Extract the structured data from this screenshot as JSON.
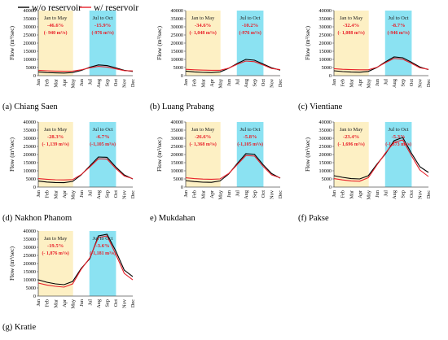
{
  "legend": [
    {
      "name": "w/o reservoir",
      "color": "#000000"
    },
    {
      "name": "w/ reservoir",
      "color": "#e8202a"
    }
  ],
  "colors": {
    "dry_band": "#fdf0c4",
    "wet_band": "#8be2f2",
    "change_text": "#e8202a",
    "dark_text": "#222222"
  },
  "chart_data": [
    {
      "type": "line",
      "caption": "(a) Chiang Saen",
      "ylabel": "Flow (m³/sec)",
      "ylim": [
        0,
        40000
      ],
      "yticks": [
        "0",
        "5000",
        "10000",
        "15000",
        "20000",
        "25000",
        "30000",
        "35000",
        "40000"
      ],
      "categories": [
        "Jan",
        "Feb",
        "Mar",
        "Apr",
        "May",
        "Jun",
        "Jul",
        "Aug",
        "Sep",
        "Oct",
        "Nov",
        "Dec"
      ],
      "series": [
        {
          "name": "w/o reservoir",
          "values": [
            2300,
            1900,
            1700,
            1600,
            1900,
            3200,
            5200,
            6600,
            6200,
            4800,
            3300,
            2600
          ]
        },
        {
          "name": "w/ reservoir",
          "values": [
            3300,
            3000,
            2800,
            2700,
            2800,
            3600,
            4800,
            5700,
            5300,
            4200,
            3100,
            2900
          ]
        }
      ],
      "annotations": [
        {
          "period": "Jan to May",
          "pct": "-46.6%",
          "abs": "(- 940 m³/s)"
        },
        {
          "period": "Jul to Oct",
          "pct": "-15.9%",
          "abs": "(-976 m³/s)"
        }
      ]
    },
    {
      "type": "line",
      "caption": "(b) Luang Prabang",
      "ylabel": "Flow (m³/sec)",
      "ylim": [
        0,
        40000
      ],
      "yticks": [
        "0",
        "5000",
        "10000",
        "15000",
        "20000",
        "25000",
        "30000",
        "35000",
        "40000"
      ],
      "categories": [
        "Jan",
        "Feb",
        "Mar",
        "Apr",
        "May",
        "Jun",
        "Jul",
        "Aug",
        "Sep",
        "Oct",
        "Nov",
        "Dec"
      ],
      "series": [
        {
          "name": "w/o reservoir",
          "values": [
            2800,
            2300,
            2000,
            1900,
            2300,
            4500,
            7500,
            10000,
            9500,
            7200,
            4800,
            3400
          ]
        },
        {
          "name": "w/ reservoir",
          "values": [
            3900,
            3600,
            3400,
            3300,
            3300,
            4600,
            7000,
            9000,
            8600,
            6600,
            4400,
            3700
          ]
        }
      ],
      "annotations": [
        {
          "period": "Jan to May",
          "pct": "-34.6%",
          "abs": "(- 1,048 m³/s)"
        },
        {
          "period": "Jul to Oct",
          "pct": "-10.2%",
          "abs": "(-976 m³/s)"
        }
      ]
    },
    {
      "type": "line",
      "caption": "(c) Vientiane",
      "ylabel": "Flow (m³/sec)",
      "ylim": [
        0,
        40000
      ],
      "yticks": [
        "0",
        "5000",
        "10000",
        "15000",
        "20000",
        "25000",
        "30000",
        "35000",
        "40000"
      ],
      "categories": [
        "Jan",
        "Feb",
        "Mar",
        "Apr",
        "May",
        "Jun",
        "Jul",
        "Aug",
        "Sep",
        "Oct",
        "Nov",
        "Dec"
      ],
      "series": [
        {
          "name": "w/o reservoir",
          "values": [
            3000,
            2500,
            2200,
            2100,
            2600,
            5000,
            8500,
            11500,
            11000,
            8300,
            5300,
            3700
          ]
        },
        {
          "name": "w/ reservoir",
          "values": [
            4300,
            3900,
            3700,
            3600,
            3600,
            5100,
            8000,
            10600,
            10100,
            7600,
            4800,
            3900
          ]
        }
      ],
      "annotations": [
        {
          "period": "Jan to May",
          "pct": "-32.4%",
          "abs": "(- 1,088 m³/s)"
        },
        {
          "period": "Jul to Oct",
          "pct": "-8.7%",
          "abs": "(-946 m³/s)"
        }
      ]
    },
    {
      "type": "line",
      "caption": "(d) Nakhon Phanom",
      "ylabel": "Flow (m³/sec)",
      "ylim": [
        0,
        40000
      ],
      "yticks": [
        "0",
        "5000",
        "10000",
        "15000",
        "20000",
        "25000",
        "30000",
        "35000",
        "40000"
      ],
      "categories": [
        "Jan",
        "Feb",
        "Mar",
        "Apr",
        "May",
        "Jun",
        "Jul",
        "Aug",
        "Sep",
        "Oct",
        "Nov",
        "Dec"
      ],
      "series": [
        {
          "name": "w/o reservoir",
          "values": [
            3700,
            3100,
            2800,
            2700,
            3500,
            7500,
            13000,
            18500,
            18300,
            12500,
            7500,
            5000
          ]
        },
        {
          "name": "w/ reservoir",
          "values": [
            5200,
            4800,
            4500,
            4400,
            4600,
            7700,
            12400,
            17400,
            17200,
            11600,
            6800,
            5200
          ]
        }
      ],
      "annotations": [
        {
          "period": "Jan to May",
          "pct": "-28.3%",
          "abs": "(- 1,139 m³/s)"
        },
        {
          "period": "Jul to Oct",
          "pct": "-6.7%",
          "abs": "(-1,105 m³/s)"
        }
      ]
    },
    {
      "type": "line",
      "caption": "e) Mukdahan",
      "ylabel": "Flow (m³/sec)",
      "ylim": [
        0,
        40000
      ],
      "yticks": [
        "0",
        "5000",
        "10000",
        "15000",
        "20000",
        "25000",
        "30000",
        "35000",
        "40000"
      ],
      "categories": [
        "Jan",
        "Feb",
        "Mar",
        "Apr",
        "May",
        "Jun",
        "Jul",
        "Aug",
        "Sep",
        "Oct",
        "Nov",
        "Dec"
      ],
      "series": [
        {
          "name": "w/o reservoir",
          "values": [
            4000,
            3400,
            3000,
            2900,
            3800,
            8000,
            14500,
            20500,
            20200,
            13800,
            8300,
            5500
          ]
        },
        {
          "name": "w/ reservoir",
          "values": [
            5700,
            5200,
            4900,
            4800,
            5000,
            8300,
            13800,
            19400,
            19100,
            12800,
            7500,
            5700
          ]
        }
      ],
      "annotations": [
        {
          "period": "Jan to May",
          "pct": "-26.6%",
          "abs": "(- 1,368 m³/s)"
        },
        {
          "period": "Jul to Oct",
          "pct": "-5.8%",
          "abs": "(-1,105 m³/s)"
        }
      ]
    },
    {
      "type": "line",
      "caption": "(f) Pakse",
      "ylabel": "Flow (m³/sec)",
      "ylim": [
        0,
        40000
      ],
      "yticks": [
        "0",
        "5000",
        "10000",
        "15000",
        "20000",
        "25000",
        "30000",
        "35000",
        "40000"
      ],
      "categories": [
        "Jan",
        "Feb",
        "Mar",
        "Apr",
        "May",
        "Jun",
        "Jul",
        "Aug",
        "Sep",
        "Oct",
        "Nov",
        "Dec"
      ],
      "series": [
        {
          "name": "w/o reservoir",
          "values": [
            7000,
            6000,
            5200,
            5000,
            7000,
            14000,
            20500,
            28500,
            30500,
            21000,
            12500,
            9000
          ]
        },
        {
          "name": "w/ reservoir",
          "values": [
            5200,
            4400,
            3800,
            3600,
            5800,
            13500,
            21000,
            27500,
            29000,
            19500,
            10500,
            6500
          ]
        }
      ],
      "annotations": [
        {
          "period": "Jan to May",
          "pct": "-23.4%",
          "abs": "(- 1,696 m³/s)"
        },
        {
          "period": "Jul to Oct",
          "pct": "-5.3%",
          "abs": "(-1,373 m³/s)"
        }
      ]
    },
    {
      "type": "line",
      "caption": "(g) Kratie",
      "ylabel": "Flow (m³/sec)",
      "ylim": [
        0,
        40000
      ],
      "yticks": [
        "0",
        "5000",
        "10000",
        "15000",
        "20000",
        "25000",
        "30000",
        "35000",
        "40000"
      ],
      "categories": [
        "Jan",
        "Feb",
        "Mar",
        "Apr",
        "May",
        "Jun",
        "Jul",
        "Aug",
        "Sep",
        "Oct",
        "Nov",
        "Dec"
      ],
      "series": [
        {
          "name": "w/o reservoir",
          "values": [
            10000,
            8500,
            7500,
            7000,
            9000,
            17000,
            23000,
            37000,
            38000,
            28000,
            16000,
            12000
          ]
        },
        {
          "name": "w/ reservoir",
          "values": [
            8000,
            6800,
            6000,
            5500,
            7500,
            16500,
            23500,
            36000,
            37000,
            26000,
            14000,
            10000
          ]
        }
      ],
      "annotations": [
        {
          "period": "Jan to May",
          "pct": "-19.5%",
          "abs": "(- 1,876 m³/s)"
        },
        {
          "period": "Jul to Oct",
          "pct": "-3.6%",
          "abs": "(-1,181 m³/s)"
        }
      ]
    }
  ]
}
